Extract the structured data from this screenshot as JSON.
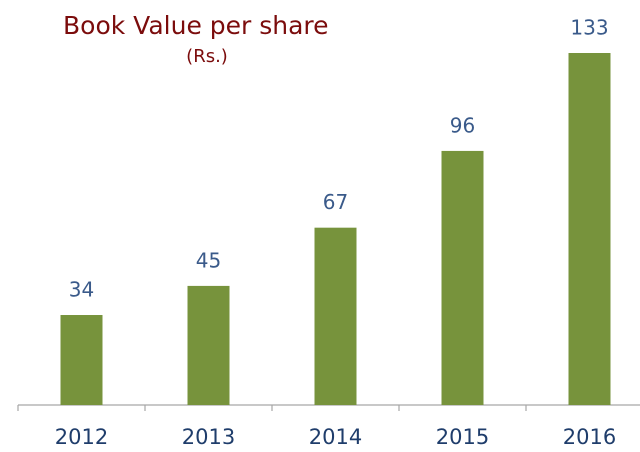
{
  "chart_data": {
    "type": "bar",
    "title": "Book Value per share",
    "subtitle": "(Rs.)",
    "categories": [
      "2012",
      "2013",
      "2014",
      "2015",
      "2016"
    ],
    "values": [
      34,
      45,
      67,
      96,
      133
    ],
    "color": "#77933c"
  }
}
